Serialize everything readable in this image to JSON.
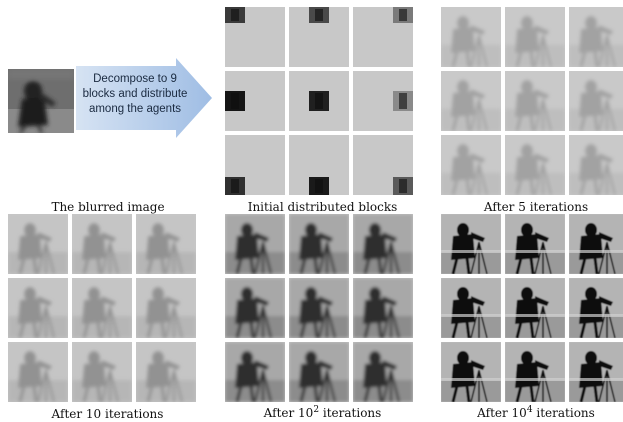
{
  "arrow_label": {
    "line1": "Decompose to 9",
    "line2": "blocks and distribute",
    "line3": "among the agents"
  },
  "captions": {
    "blurred": "The blurred image",
    "initial": "Initial distributed blocks",
    "iter5_prefix": "After ",
    "iter5_num": "5",
    "iter5_suffix": " iterations",
    "iter10_prefix": "After ",
    "iter10_num": "10",
    "iter10_suffix": " iterations",
    "iter100_prefix": "After ",
    "iter100_base": "10",
    "iter100_exp": "2",
    "iter100_suffix": " iterations",
    "iter10000_prefix": "After ",
    "iter10000_base": "10",
    "iter10000_exp": "4",
    "iter10000_suffix": " iterations"
  },
  "colors": {
    "arrow_fill": "#a9c4e6",
    "arrow_fill_dark": "#8aaed8",
    "tile_gray": "#c8c8c8"
  }
}
